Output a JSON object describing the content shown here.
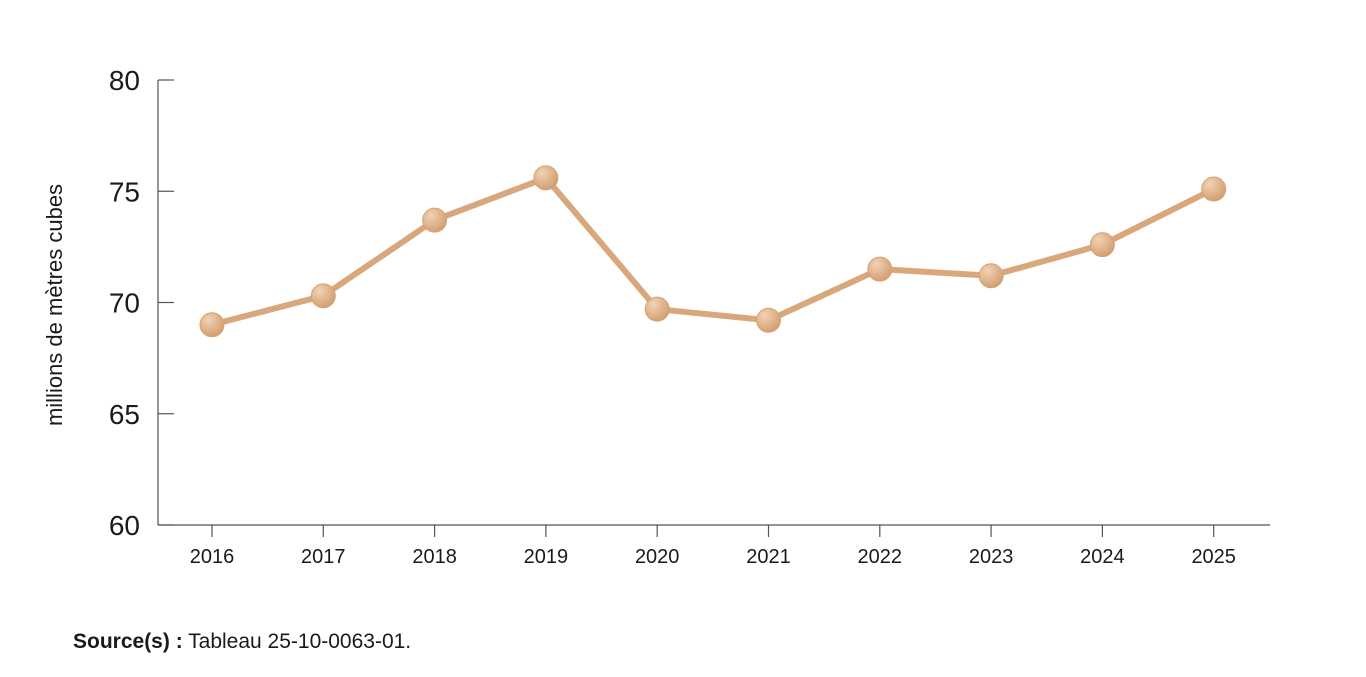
{
  "chart_data": {
    "type": "line",
    "title": "",
    "xlabel": "",
    "ylabel": "millions de mètres cubes",
    "ylim": [
      60,
      80
    ],
    "yticks": [
      60,
      65,
      70,
      75,
      80
    ],
    "categories": [
      "2016",
      "2017",
      "2018",
      "2019",
      "2020",
      "2021",
      "2022",
      "2023",
      "2024",
      "2025"
    ],
    "series": [
      {
        "values": [
          69.0,
          70.3,
          73.7,
          75.6,
          69.7,
          69.2,
          71.5,
          71.2,
          72.6,
          75.1
        ]
      }
    ],
    "grid": false,
    "legend": "none",
    "colors": {
      "line": "#d9a77c",
      "marker": "#e0b48c",
      "axis": "#555555"
    }
  },
  "source": {
    "label": "Source(s) :",
    "text": " Tableau 25-10-0063-01."
  }
}
